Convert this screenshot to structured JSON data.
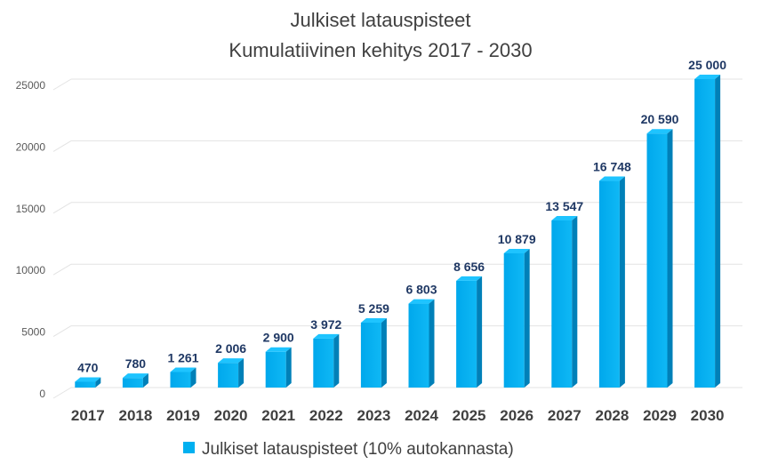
{
  "chart_data": {
    "type": "bar",
    "title": "Julkiset latauspisteet",
    "subtitle": "Kumulatiivinen kehitys 2017 - 2030",
    "categories": [
      "2017",
      "2018",
      "2019",
      "2020",
      "2021",
      "2022",
      "2023",
      "2024",
      "2025",
      "2026",
      "2027",
      "2028",
      "2029",
      "2030"
    ],
    "series": [
      {
        "name": "Julkiset latauspisteet (10% autokannasta)",
        "values": [
          470,
          780,
          1261,
          2006,
          2900,
          3972,
          5259,
          6803,
          8656,
          10879,
          13547,
          16748,
          20590,
          25000
        ],
        "labels": [
          "470",
          "780",
          "1 261",
          "2 006",
          "2 900",
          "3 972",
          "5 259",
          "6 803",
          "8 656",
          "10 879",
          "13 547",
          "16 748",
          "20 590",
          "25 000"
        ],
        "color": "#00b0f0"
      }
    ],
    "ylim": [
      0,
      25000
    ],
    "yticks": [
      0,
      5000,
      10000,
      15000,
      20000,
      25000
    ],
    "ytick_labels": [
      "0",
      "5000",
      "10000",
      "15000",
      "20000",
      "25000"
    ],
    "grid": true,
    "legend_position": "bottom",
    "style": "3d-column"
  }
}
